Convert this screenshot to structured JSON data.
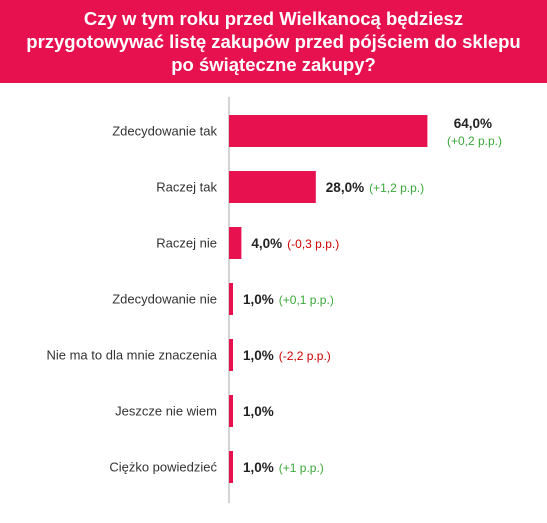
{
  "colors": {
    "header_bg": "#e8114f",
    "bar": "#e8114f",
    "positive": "#3aa83a",
    "negative": "#cc0000",
    "axis": "#aaaaaa"
  },
  "chart_data": {
    "type": "bar",
    "orientation": "horizontal",
    "title": "Czy w tym roku przed Wielkanocą będziesz przygotowywać listę zakupów przed pójściem do sklepu po świąteczne zakupy?",
    "categories": [
      "Zdecydowanie tak",
      "Raczej tak",
      "Raczej nie",
      "Zdecydowanie nie",
      "Nie ma to dla mnie znaczenia",
      "Jeszcze nie wiem",
      "Ciężko powiedzieć"
    ],
    "values": [
      64.0,
      28.0,
      4.0,
      1.0,
      1.0,
      1.0,
      1.0
    ],
    "value_labels": [
      "64,0%",
      "28,0%",
      "4,0%",
      "1,0%",
      "1,0%",
      "1,0%",
      "1,0%"
    ],
    "changes": [
      "(+0,2 p.p.)",
      "(+1,2 p.p.)",
      "(-0,3 p.p.)",
      "(+0,1 p.p.)",
      "(-2,2 p.p.)",
      "",
      "(+1 p.p.)"
    ],
    "change_signs": [
      "positive",
      "positive",
      "negative",
      "positive",
      "negative",
      "",
      "positive"
    ],
    "grid": false,
    "legend": "none"
  }
}
